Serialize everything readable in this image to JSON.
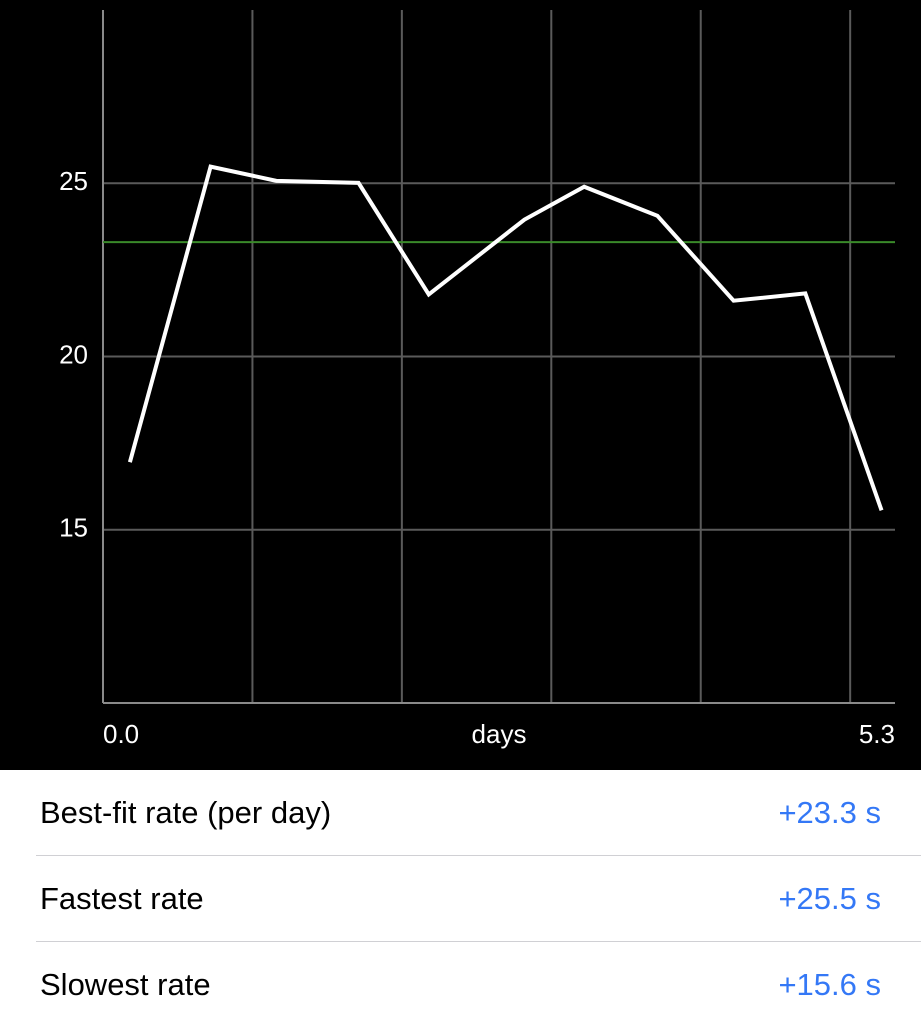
{
  "chart_data": {
    "type": "line",
    "xlabel": "days",
    "x": [
      0.18,
      0.72,
      1.16,
      1.71,
      2.18,
      2.82,
      3.22,
      3.71,
      4.22,
      4.7,
      5.21
    ],
    "values": [
      16.95,
      25.48,
      25.07,
      25.01,
      21.79,
      23.95,
      24.9,
      24.06,
      21.61,
      21.82,
      15.56
    ],
    "color": "#ffffff",
    "best_fit": 23.3,
    "best_fit_color": "#3a8a2a",
    "xlim": [
      0,
      5.3
    ],
    "xticks": [
      {
        "value": 0,
        "label": "0.0"
      },
      {
        "value": 5.3,
        "label": "5.3"
      }
    ],
    "xgrid": [
      1,
      2,
      3,
      4,
      5
    ],
    "ylim": [
      10,
      30
    ],
    "yticks": [
      15,
      20,
      25
    ],
    "grid": true
  },
  "table": {
    "rows": [
      [
        "Best-fit rate (per day)",
        "+23.3 s"
      ],
      [
        "Fastest rate",
        "+25.5 s"
      ],
      [
        "Slowest rate",
        "+15.6 s"
      ]
    ]
  }
}
